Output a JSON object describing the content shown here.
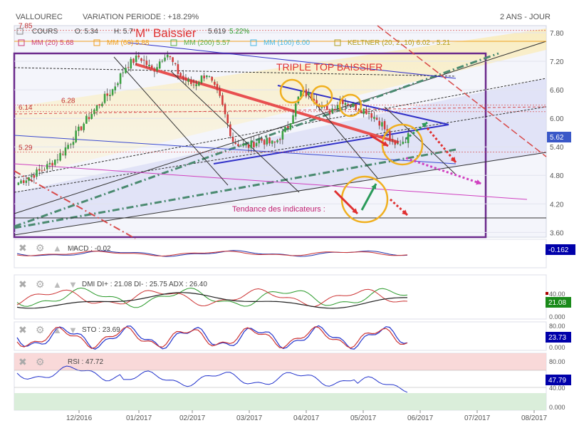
{
  "header": {
    "ticker": "VALLOUREC",
    "variation": "VARIATION PERIODE : +18.29%",
    "period": "2 ANS - JOUR"
  },
  "main": {
    "ohlc_label": "COURS",
    "open": "O: 5.34",
    "high": "H: 5.7",
    "last": "5.619",
    "change": "5.22%",
    "ma": [
      {
        "label": "MM (20) 5.68",
        "color": "#cc3f7a"
      },
      {
        "label": "MM (60) 5.88",
        "color": "#f0a020"
      },
      {
        "label": "MM (200) 5.57",
        "color": "#5ab048"
      },
      {
        "label": "MM (100) 6.00",
        "color": "#48b8e0"
      },
      {
        "label": "KELTNER (20, 2, 10) 6.02 - 5.21",
        "color": "#b0a020"
      }
    ],
    "yticks": [
      3.6,
      4.2,
      4.8,
      5.4,
      6.0,
      6.6,
      7.2,
      7.8
    ],
    "ylim": [
      3.5,
      7.95
    ],
    "price_badge": "5.62",
    "ann_levels": [
      {
        "value": 7.85,
        "label": "7.85"
      },
      {
        "value": 6.28,
        "label": "6.28"
      },
      {
        "value": 6.14,
        "label": "6.14"
      },
      {
        "value": 5.29,
        "label": "5.29"
      }
    ],
    "annotations": {
      "m_baissier": "\"M\" Baissier",
      "triple_top": "TRIPLE TOP BAISSIER",
      "tendance": "Tendance des indicateurs :"
    }
  },
  "xaxis": {
    "ticks": [
      "12/2016",
      "01/2017",
      "02/2017",
      "03/2017",
      "04/2017",
      "05/2017",
      "06/2017",
      "07/2017",
      "08/2017"
    ]
  },
  "panels": {
    "macd": {
      "label": "MACD : -0.02",
      "badge": "-0.162",
      "badge_color": "#0000aa"
    },
    "dmi": {
      "label": "DMI DI+ : 21.08 DI- : 25.75 ADX : 26.40",
      "ticks": [
        "40.00",
        "0.000"
      ],
      "badges": [
        "21.08"
      ],
      "badge_color": "#1a8a1a"
    },
    "sto": {
      "label": "STO : 23.69",
      "ticks": [
        "80.00",
        "0.000"
      ],
      "badge": "23.73",
      "badge_color": "#0000aa"
    },
    "rsi": {
      "label": "RSI : 47.72",
      "ticks": [
        "80.00",
        "40.00",
        "0.000"
      ],
      "badge": "47.79",
      "badge_color": "#0000aa"
    }
  },
  "chart_data": {
    "type": "candlestick",
    "title": "VALLOUREC",
    "x_range": [
      "11/2016",
      "08/2017"
    ],
    "ylim": [
      3.5,
      7.95
    ],
    "close_series": [
      [
        "2016-11-07",
        4.65
      ],
      [
        "2016-11-14",
        4.8
      ],
      [
        "2016-11-21",
        4.95
      ],
      [
        "2016-11-28",
        5.2
      ],
      [
        "2016-12-05",
        5.55
      ],
      [
        "2016-12-12",
        5.95
      ],
      [
        "2016-12-19",
        6.3
      ],
      [
        "2016-12-26",
        6.6
      ],
      [
        "2017-01-02",
        7.1
      ],
      [
        "2017-01-09",
        7.3
      ],
      [
        "2017-01-16",
        7.0
      ],
      [
        "2017-01-23",
        7.4
      ],
      [
        "2017-01-30",
        6.9
      ],
      [
        "2017-02-06",
        6.7
      ],
      [
        "2017-02-13",
        6.95
      ],
      [
        "2017-02-20",
        6.4
      ],
      [
        "2017-02-27",
        5.5
      ],
      [
        "2017-03-06",
        5.4
      ],
      [
        "2017-03-13",
        5.55
      ],
      [
        "2017-03-20",
        5.45
      ],
      [
        "2017-03-27",
        5.8
      ],
      [
        "2017-04-03",
        6.55
      ],
      [
        "2017-04-10",
        6.45
      ],
      [
        "2017-04-17",
        6.1
      ],
      [
        "2017-04-24",
        6.4
      ],
      [
        "2017-05-01",
        6.25
      ],
      [
        "2017-05-08",
        6.15
      ],
      [
        "2017-05-15",
        5.9
      ],
      [
        "2017-05-22",
        5.4
      ],
      [
        "2017-05-29",
        5.62
      ]
    ]
  }
}
